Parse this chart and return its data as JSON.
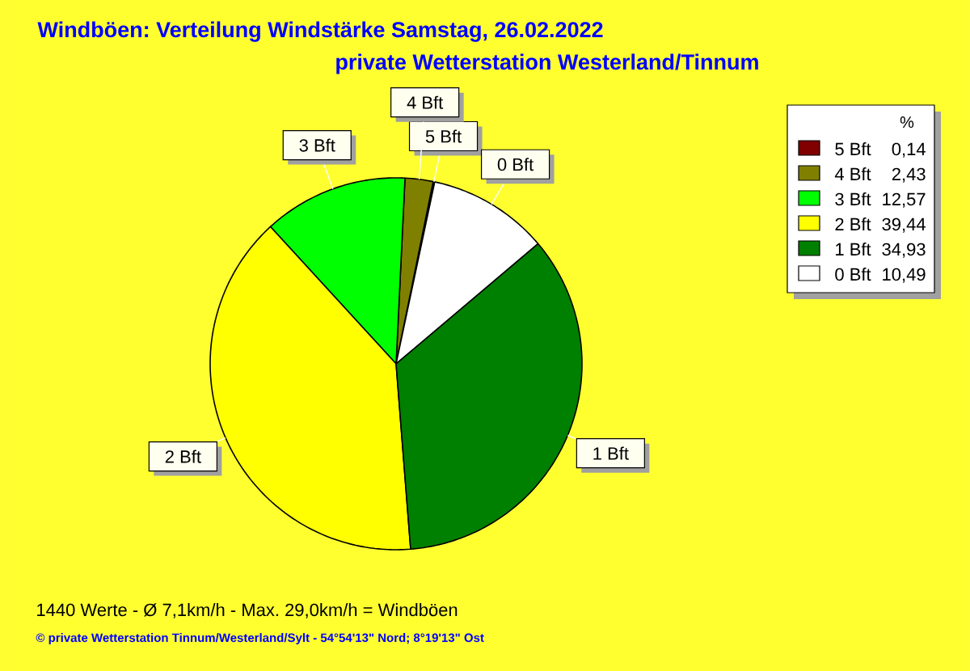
{
  "chart_data": {
    "type": "pie",
    "title": "Windböen: Verteilung Windstärke  Samstag, 26.02.2022",
    "subtitle": "private Wetterstation Westerland/Tinnum",
    "categories": [
      "5 Bft",
      "4 Bft",
      "3 Bft",
      "2 Bft",
      "1 Bft",
      "0 Bft"
    ],
    "values": [
      0.14,
      2.43,
      12.57,
      39.44,
      34.93,
      10.49
    ],
    "value_labels": [
      "0,14",
      "2,43",
      "12,57",
      "39,44",
      "34,93",
      "10,49"
    ],
    "colors": [
      "#800000",
      "#808000",
      "#00ff00",
      "#ffff00",
      "#008000",
      "#ffffff"
    ],
    "legend": "top right",
    "legend_title": "%",
    "annotations": [
      "1440 Werte   -   Ø 7,1km/h  -  Max. 29,0km/h = Windböen",
      "© private Wetterstation Tinnum/Westerland/Sylt  -  54°54'13\" Nord; 8°19'13\" Ost"
    ]
  }
}
